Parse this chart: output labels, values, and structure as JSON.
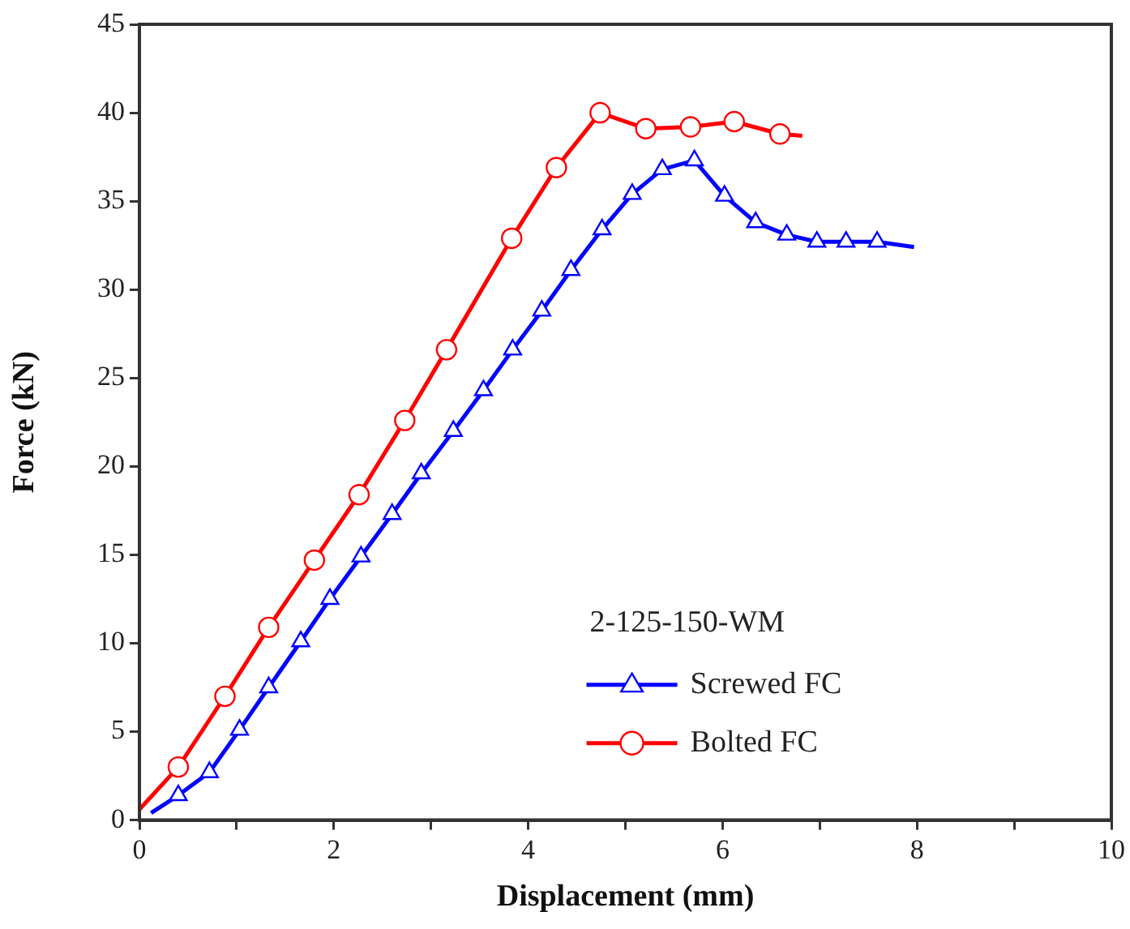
{
  "chart_data": {
    "type": "line",
    "xlabel": "Displacement (mm)",
    "ylabel": "Force (kN)",
    "legend_title": "2-125-150-WM",
    "legend": "right",
    "xlim": [
      0,
      10
    ],
    "ylim": [
      0,
      45
    ],
    "xticks": [
      0,
      {
        "value": 1,
        "label": null
      },
      2,
      {
        "value": 3,
        "label": null
      },
      4,
      {
        "value": 5,
        "label": null
      },
      6,
      {
        "value": 7,
        "label": null
      },
      8,
      {
        "value": 9,
        "label": null
      },
      10
    ],
    "yticks": [
      0,
      5,
      10,
      15,
      20,
      25,
      30,
      35,
      40,
      45
    ],
    "grid": false,
    "series": [
      {
        "name": "Screwed FC",
        "color": "#0000ff",
        "marker": "triangle",
        "x": [
          0.12,
          0.4,
          0.72,
          1.03,
          1.33,
          1.66,
          1.96,
          2.28,
          2.6,
          2.9,
          3.23,
          3.54,
          3.84,
          4.14,
          4.44,
          4.76,
          5.07,
          5.38,
          5.71,
          6.02,
          6.34,
          6.66,
          6.97,
          7.27,
          7.59,
          7.97
        ],
        "values": [
          0.4,
          1.4,
          2.7,
          5.1,
          7.5,
          10.1,
          12.5,
          14.9,
          17.3,
          19.6,
          22.0,
          24.3,
          26.6,
          28.8,
          31.1,
          33.4,
          35.4,
          36.8,
          37.3,
          35.3,
          33.8,
          33.1,
          32.7,
          32.7,
          32.7,
          32.4
        ]
      },
      {
        "name": "Bolted FC",
        "color": "#ff0000",
        "marker": "circle",
        "x": [
          0,
          0.4,
          0.88,
          1.33,
          1.8,
          2.26,
          2.73,
          3.16,
          3.83,
          4.29,
          4.74,
          5.21,
          5.67,
          6.12,
          6.59,
          6.82
        ],
        "values": [
          0.6,
          3.0,
          7.0,
          10.9,
          14.7,
          18.4,
          22.6,
          26.6,
          32.9,
          36.9,
          40.0,
          39.1,
          39.2,
          39.5,
          38.8,
          38.7
        ]
      }
    ]
  }
}
